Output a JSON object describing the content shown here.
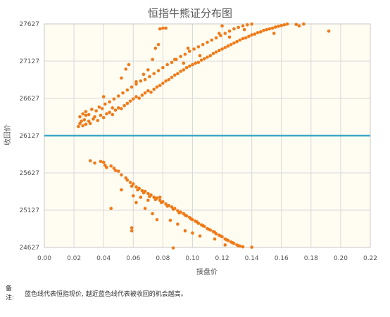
{
  "colors": {
    "plot_background": "#fffcf2",
    "grid": "#d9d9d9",
    "point": "#f07a18",
    "current_line": "#3aa8c9",
    "text": "#555555"
  },
  "note": {
    "label": "备注:",
    "text": "蓝色线代表恒指现价, 越近蓝色线代表被收回的机会越高。"
  },
  "chart_data": {
    "type": "scatter",
    "title": "恒指牛熊证分布图",
    "xlabel": "接盘价",
    "ylabel": "收回价",
    "xlim": [
      0,
      0.22
    ],
    "ylim": [
      24627,
      27627
    ],
    "x_ticks": [
      "0.00",
      "0.02",
      "0.04",
      "0.06",
      "0.08",
      "0.10",
      "0.12",
      "0.14",
      "0.16",
      "0.18",
      "0.20",
      "0.22"
    ],
    "y_ticks": [
      "24627",
      "25127",
      "25627",
      "26127",
      "26627",
      "27127",
      "27627"
    ],
    "grid": true,
    "current_price_line": 26127,
    "series": [
      {
        "points": [
          [
            0.023,
            26250
          ],
          [
            0.024,
            26290
          ],
          [
            0.025,
            26320
          ],
          [
            0.026,
            26260
          ],
          [
            0.027,
            26340
          ],
          [
            0.028,
            26280
          ],
          [
            0.03,
            26320
          ],
          [
            0.031,
            26290
          ],
          [
            0.033,
            26350
          ],
          [
            0.034,
            26380
          ],
          [
            0.036,
            26330
          ],
          [
            0.038,
            26400
          ],
          [
            0.04,
            26370
          ],
          [
            0.042,
            26420
          ],
          [
            0.044,
            26440
          ],
          [
            0.046,
            26410
          ],
          [
            0.048,
            26470
          ],
          [
            0.05,
            26500
          ],
          [
            0.052,
            26490
          ],
          [
            0.054,
            26530
          ],
          [
            0.056,
            26560
          ],
          [
            0.058,
            26590
          ],
          [
            0.06,
            26620
          ],
          [
            0.062,
            26650
          ],
          [
            0.064,
            26630
          ],
          [
            0.066,
            26670
          ],
          [
            0.068,
            26700
          ],
          [
            0.07,
            26730
          ],
          [
            0.072,
            26710
          ],
          [
            0.074,
            26750
          ],
          [
            0.076,
            26780
          ],
          [
            0.078,
            26800
          ],
          [
            0.08,
            26830
          ],
          [
            0.082,
            26860
          ],
          [
            0.084,
            26880
          ],
          [
            0.086,
            26910
          ],
          [
            0.088,
            26940
          ],
          [
            0.09,
            26960
          ],
          [
            0.092,
            26990
          ],
          [
            0.094,
            27010
          ],
          [
            0.096,
            27040
          ],
          [
            0.098,
            27060
          ],
          [
            0.1,
            27080
          ],
          [
            0.102,
            27100
          ],
          [
            0.104,
            27110
          ],
          [
            0.106,
            27140
          ],
          [
            0.108,
            27160
          ],
          [
            0.11,
            27180
          ],
          [
            0.112,
            27200
          ],
          [
            0.114,
            27230
          ],
          [
            0.116,
            27250
          ],
          [
            0.118,
            27270
          ],
          [
            0.12,
            27290
          ],
          [
            0.122,
            27310
          ],
          [
            0.124,
            27330
          ],
          [
            0.126,
            27350
          ],
          [
            0.128,
            27370
          ],
          [
            0.13,
            27390
          ],
          [
            0.132,
            27410
          ],
          [
            0.134,
            27430
          ],
          [
            0.136,
            27440
          ],
          [
            0.138,
            27460
          ],
          [
            0.14,
            27480
          ],
          [
            0.142,
            27490
          ],
          [
            0.144,
            27510
          ],
          [
            0.146,
            27520
          ],
          [
            0.148,
            27540
          ],
          [
            0.15,
            27550
          ],
          [
            0.152,
            27560
          ],
          [
            0.154,
            27570
          ],
          [
            0.156,
            27585
          ],
          [
            0.158,
            27595
          ],
          [
            0.16,
            27605
          ],
          [
            0.162,
            27615
          ],
          [
            0.164,
            27625
          ],
          [
            0.024,
            26380
          ],
          [
            0.026,
            26420
          ],
          [
            0.028,
            26450
          ],
          [
            0.03,
            26410
          ],
          [
            0.032,
            26480
          ],
          [
            0.035,
            26460
          ],
          [
            0.037,
            26510
          ],
          [
            0.039,
            26490
          ],
          [
            0.041,
            26550
          ],
          [
            0.044,
            26580
          ],
          [
            0.047,
            26620
          ],
          [
            0.05,
            26660
          ],
          [
            0.053,
            26700
          ],
          [
            0.056,
            26740
          ],
          [
            0.059,
            26780
          ],
          [
            0.062,
            26820
          ],
          [
            0.065,
            26860
          ],
          [
            0.068,
            26880
          ],
          [
            0.071,
            26920
          ],
          [
            0.074,
            26960
          ],
          [
            0.077,
            27000
          ],
          [
            0.08,
            27040
          ],
          [
            0.083,
            27080
          ],
          [
            0.086,
            27110
          ],
          [
            0.089,
            27150
          ],
          [
            0.092,
            27190
          ],
          [
            0.095,
            27220
          ],
          [
            0.098,
            27260
          ],
          [
            0.101,
            27290
          ],
          [
            0.104,
            27320
          ],
          [
            0.107,
            27350
          ],
          [
            0.11,
            27380
          ],
          [
            0.113,
            27410
          ],
          [
            0.116,
            27440
          ],
          [
            0.119,
            27470
          ],
          [
            0.122,
            27500
          ],
          [
            0.125,
            27530
          ],
          [
            0.128,
            27560
          ],
          [
            0.131,
            27580
          ],
          [
            0.134,
            27600
          ],
          [
            0.137,
            27615
          ],
          [
            0.14,
            27625
          ],
          [
            0.028,
            26400
          ],
          [
            0.04,
            26650
          ],
          [
            0.046,
            26500
          ],
          [
            0.052,
            26900
          ],
          [
            0.055,
            27020
          ],
          [
            0.057,
            27080
          ],
          [
            0.062,
            26850
          ],
          [
            0.067,
            26950
          ],
          [
            0.07,
            27010
          ],
          [
            0.073,
            27150
          ],
          [
            0.075,
            27300
          ],
          [
            0.077,
            27350
          ],
          [
            0.078,
            27560
          ],
          [
            0.08,
            27570
          ],
          [
            0.082,
            27570
          ],
          [
            0.088,
            27150
          ],
          [
            0.094,
            27100
          ],
          [
            0.097,
            27300
          ],
          [
            0.105,
            27200
          ],
          [
            0.118,
            27500
          ],
          [
            0.12,
            27600
          ],
          [
            0.125,
            27450
          ],
          [
            0.135,
            27550
          ],
          [
            0.155,
            27500
          ],
          [
            0.17,
            27620
          ],
          [
            0.172,
            27600
          ],
          [
            0.175,
            27625
          ],
          [
            0.192,
            27530
          ]
        ]
      },
      {
        "points": [
          [
            0.031,
            25790
          ],
          [
            0.038,
            25780
          ],
          [
            0.04,
            25770
          ],
          [
            0.042,
            25700
          ],
          [
            0.045,
            25720
          ],
          [
            0.048,
            25660
          ],
          [
            0.05,
            25650
          ],
          [
            0.052,
            25600
          ],
          [
            0.055,
            25560
          ],
          [
            0.058,
            25500
          ],
          [
            0.06,
            25480
          ],
          [
            0.062,
            25440
          ],
          [
            0.064,
            25420
          ],
          [
            0.066,
            25390
          ],
          [
            0.068,
            25380
          ],
          [
            0.07,
            25350
          ],
          [
            0.072,
            25330
          ],
          [
            0.074,
            25300
          ],
          [
            0.076,
            25290
          ],
          [
            0.078,
            25260
          ],
          [
            0.08,
            25240
          ],
          [
            0.082,
            25210
          ],
          [
            0.084,
            25190
          ],
          [
            0.086,
            25170
          ],
          [
            0.088,
            25150
          ],
          [
            0.09,
            25120
          ],
          [
            0.092,
            25100
          ],
          [
            0.094,
            25080
          ],
          [
            0.096,
            25050
          ],
          [
            0.098,
            25030
          ],
          [
            0.1,
            25000
          ],
          [
            0.102,
            24980
          ],
          [
            0.104,
            24950
          ],
          [
            0.106,
            24930
          ],
          [
            0.108,
            24910
          ],
          [
            0.11,
            24880
          ],
          [
            0.112,
            24860
          ],
          [
            0.114,
            24840
          ],
          [
            0.116,
            24810
          ],
          [
            0.118,
            24790
          ],
          [
            0.12,
            24770
          ],
          [
            0.122,
            24740
          ],
          [
            0.124,
            24720
          ],
          [
            0.126,
            24700
          ],
          [
            0.128,
            24680
          ],
          [
            0.13,
            24660
          ],
          [
            0.132,
            24645
          ],
          [
            0.134,
            24635
          ],
          [
            0.034,
            25760
          ],
          [
            0.041,
            25730
          ],
          [
            0.047,
            25690
          ],
          [
            0.056,
            25530
          ],
          [
            0.059,
            25450
          ],
          [
            0.063,
            25400
          ],
          [
            0.067,
            25360
          ],
          [
            0.071,
            25310
          ],
          [
            0.075,
            25270
          ],
          [
            0.079,
            25230
          ],
          [
            0.083,
            25180
          ],
          [
            0.087,
            25140
          ],
          [
            0.091,
            25090
          ],
          [
            0.095,
            25060
          ],
          [
            0.099,
            25010
          ],
          [
            0.103,
            24970
          ],
          [
            0.107,
            24920
          ],
          [
            0.111,
            24870
          ],
          [
            0.115,
            24830
          ],
          [
            0.119,
            24780
          ],
          [
            0.123,
            24730
          ],
          [
            0.127,
            24690
          ],
          [
            0.131,
            24650
          ],
          [
            0.045,
            25150
          ],
          [
            0.052,
            25400
          ],
          [
            0.06,
            25320
          ],
          [
            0.062,
            25230
          ],
          [
            0.065,
            25300
          ],
          [
            0.068,
            25150
          ],
          [
            0.07,
            25260
          ],
          [
            0.073,
            25080
          ],
          [
            0.076,
            25000
          ],
          [
            0.078,
            25300
          ],
          [
            0.085,
            24990
          ],
          [
            0.09,
            24940
          ],
          [
            0.095,
            24850
          ],
          [
            0.1,
            24820
          ],
          [
            0.105,
            24780
          ],
          [
            0.115,
            24740
          ],
          [
            0.122,
            24660
          ],
          [
            0.087,
            24620
          ],
          [
            0.059,
            24850
          ],
          [
            0.059,
            24890
          ],
          [
            0.14,
            24630
          ]
        ]
      }
    ]
  }
}
